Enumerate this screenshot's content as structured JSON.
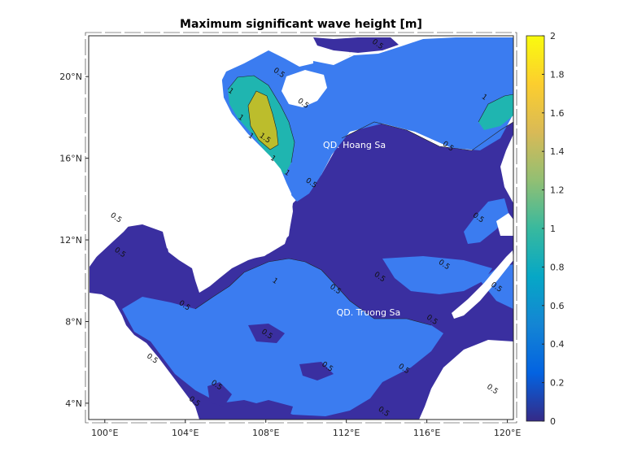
{
  "chart_data": {
    "type": "map-contour",
    "title": "Maximum significant wave height [m]",
    "lon_ticks": [
      "100°E",
      "104°E",
      "108°E",
      "112°E",
      "116°E",
      "120°E"
    ],
    "lat_ticks": [
      "4°N",
      "8°N",
      "12°N",
      "16°N",
      "20°N"
    ],
    "lon_range": [
      99.2,
      120.3
    ],
    "lat_range": [
      3.2,
      22.0
    ],
    "places": [
      {
        "name": "QD. Hoang Sa",
        "lon": 112.4,
        "lat": 16.5
      },
      {
        "name": "QD. Truong Sa",
        "lon": 113.1,
        "lat": 8.3
      }
    ],
    "contour_labels": [
      {
        "text": "0.5",
        "lon": 113.5,
        "lat": 21.5
      },
      {
        "text": "1",
        "lon": 106.2,
        "lat": 19.2
      },
      {
        "text": "1",
        "lon": 106.7,
        "lat": 17.9
      },
      {
        "text": "1",
        "lon": 107.2,
        "lat": 17.0
      },
      {
        "text": "1.5",
        "lon": 107.9,
        "lat": 16.9
      },
      {
        "text": "1",
        "lon": 108.3,
        "lat": 15.9
      },
      {
        "text": "1",
        "lon": 109.0,
        "lat": 15.2
      },
      {
        "text": "0.5",
        "lon": 109.8,
        "lat": 18.6
      },
      {
        "text": "0.5",
        "lon": 108.6,
        "lat": 20.1
      },
      {
        "text": "0.5",
        "lon": 110.2,
        "lat": 14.7
      },
      {
        "text": "0.5",
        "lon": 117.0,
        "lat": 16.5
      },
      {
        "text": "1",
        "lon": 118.8,
        "lat": 18.9
      },
      {
        "text": "0.5",
        "lon": 118.5,
        "lat": 13.0
      },
      {
        "text": "0.5",
        "lon": 116.8,
        "lat": 10.7
      },
      {
        "text": "0.5",
        "lon": 113.6,
        "lat": 10.1
      },
      {
        "text": "0.5",
        "lon": 111.4,
        "lat": 9.5
      },
      {
        "text": "0.5",
        "lon": 119.4,
        "lat": 9.6
      },
      {
        "text": "0.5",
        "lon": 116.2,
        "lat": 8.0
      },
      {
        "text": "0.5",
        "lon": 100.5,
        "lat": 13.0
      },
      {
        "text": "0.5",
        "lon": 100.7,
        "lat": 11.3
      },
      {
        "text": "0.5",
        "lon": 103.9,
        "lat": 8.7
      },
      {
        "text": "0.5",
        "lon": 102.3,
        "lat": 6.1
      },
      {
        "text": "0.5",
        "lon": 108.0,
        "lat": 7.3
      },
      {
        "text": "0.5",
        "lon": 111.0,
        "lat": 5.7
      },
      {
        "text": "0.5",
        "lon": 114.8,
        "lat": 5.6
      },
      {
        "text": "0.5",
        "lon": 113.8,
        "lat": 3.5
      },
      {
        "text": "0.5",
        "lon": 105.5,
        "lat": 4.8
      },
      {
        "text": "0.5",
        "lon": 104.4,
        "lat": 4.0
      },
      {
        "text": "0.5",
        "lon": 119.2,
        "lat": 4.6
      },
      {
        "text": "1",
        "lon": 108.4,
        "lat": 9.9
      }
    ],
    "colorbar": {
      "range": [
        0,
        2
      ],
      "ticks": [
        "0",
        "0.2",
        "0.4",
        "0.6",
        "0.8",
        "1",
        "1.2",
        "1.4",
        "1.6",
        "1.8",
        "2"
      ],
      "colormap": "parula"
    },
    "level_colors": {
      "lt_0_5": "#3a2fa0",
      "lt_1_0": "#3b7cf0",
      "lt_1_5": "#1fb5b0",
      "lt_2_0": "#bcbd2c",
      "land": "#ffffff"
    }
  }
}
